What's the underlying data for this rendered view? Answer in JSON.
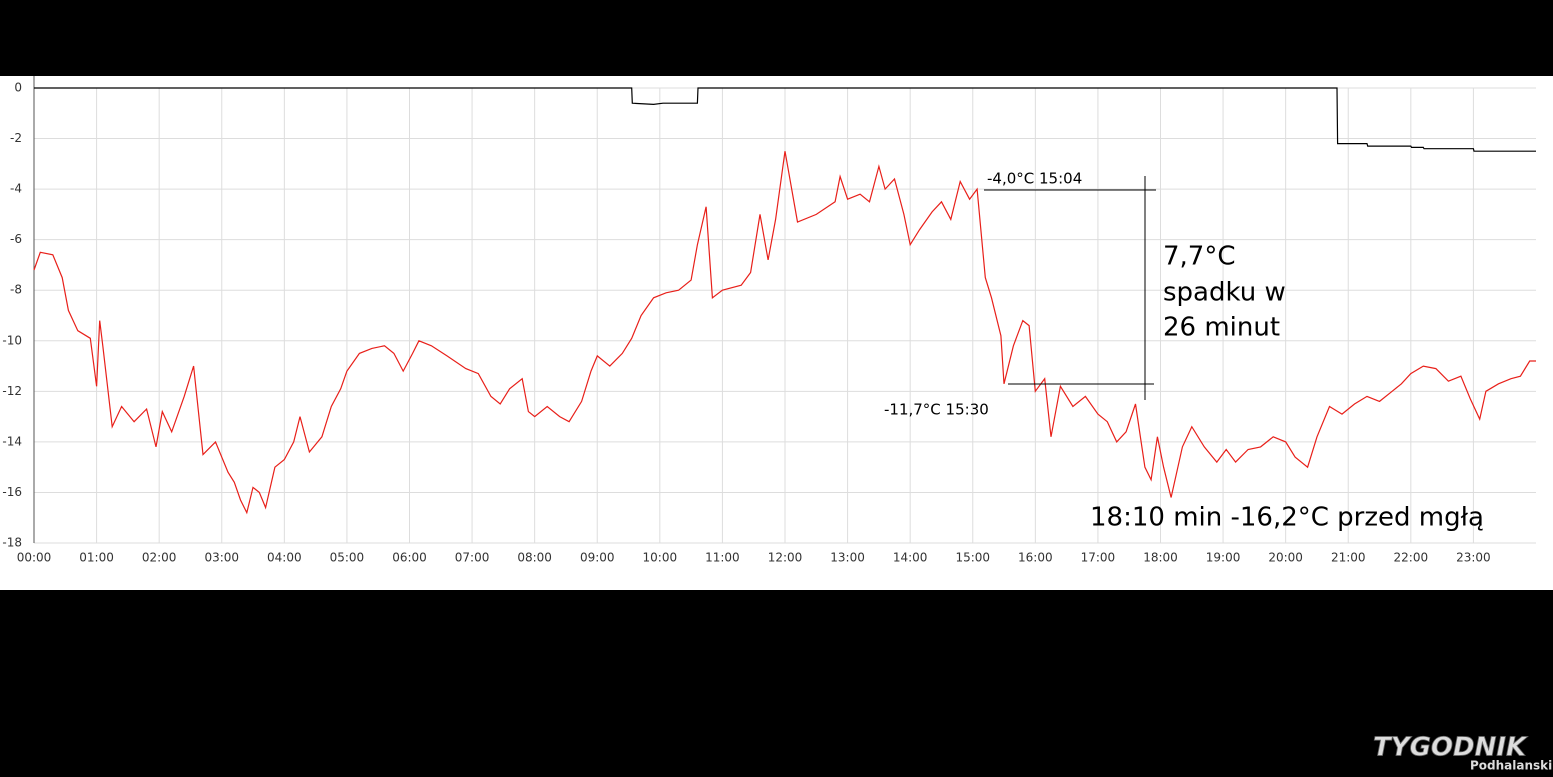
{
  "chart_data": {
    "type": "line",
    "annotations": [
      "-4,0°C 15:04",
      "-11,7°C 15:30",
      "7,7°C",
      "spadku w",
      "26 minut",
      "18:10 min -16,2°C przed mgłą"
    ],
    "watermark": [
      "TYGODNIK",
      "Podhalanski"
    ],
    "xlim": [
      0,
      24
    ],
    "ylim": [
      -18,
      0
    ],
    "yticks": [
      0,
      -2,
      -4,
      -6,
      -8,
      -10,
      -12,
      -14,
      -16,
      -18
    ],
    "xticks": [
      {
        "value": 0,
        "label": "00:00"
      },
      {
        "value": 1,
        "label": "01:00"
      },
      {
        "value": 2,
        "label": "02:00"
      },
      {
        "value": 3,
        "label": "03:00"
      },
      {
        "value": 4,
        "label": "04:00"
      },
      {
        "value": 5,
        "label": "05:00"
      },
      {
        "value": 6,
        "label": "06:00"
      },
      {
        "value": 7,
        "label": "07:00"
      },
      {
        "value": 8,
        "label": "08:00"
      },
      {
        "value": 9,
        "label": "09:00"
      },
      {
        "value": 10,
        "label": "10:00"
      },
      {
        "value": 11,
        "label": "11:00"
      },
      {
        "value": 12,
        "label": "12:00"
      },
      {
        "value": 13,
        "label": "13:00"
      },
      {
        "value": 14,
        "label": "14:00"
      },
      {
        "value": 15,
        "label": "15:00"
      },
      {
        "value": 16,
        "label": "16:00"
      },
      {
        "value": 17,
        "label": "17:00"
      },
      {
        "value": 18,
        "label": "18:00"
      },
      {
        "value": 19,
        "label": "19:00"
      },
      {
        "value": 20,
        "label": "20:00"
      },
      {
        "value": 21,
        "label": "21:00"
      },
      {
        "value": 22,
        "label": "22:00"
      },
      {
        "value": 23,
        "label": "23:00"
      }
    ],
    "grid": true,
    "series": [
      {
        "color": "#000000",
        "x": [
          0,
          9.55,
          9.56,
          9.9,
          10.05,
          10.6,
          10.61,
          20.82,
          20.83,
          21.3,
          21.31,
          22.0,
          22.01,
          22.2,
          22.21,
          23.0,
          23.01,
          24
        ],
        "values": [
          0,
          0,
          -0.6,
          -0.65,
          -0.6,
          -0.6,
          0,
          0,
          -2.2,
          -2.2,
          -2.3,
          -2.3,
          -2.35,
          -2.35,
          -2.4,
          -2.4,
          -2.5,
          -2.5
        ]
      },
      {
        "color": "#e8201a",
        "x": [
          0,
          0.1,
          0.3,
          0.45,
          0.55,
          0.7,
          0.9,
          1.0,
          1.05,
          1.1,
          1.25,
          1.4,
          1.6,
          1.8,
          1.95,
          2.05,
          2.2,
          2.4,
          2.55,
          2.7,
          2.9,
          3.1,
          3.2,
          3.3,
          3.4,
          3.5,
          3.6,
          3.7,
          3.85,
          4.0,
          4.15,
          4.25,
          4.4,
          4.6,
          4.75,
          4.9,
          5.0,
          5.2,
          5.4,
          5.6,
          5.75,
          5.9,
          6.05,
          6.15,
          6.35,
          6.6,
          6.9,
          7.1,
          7.3,
          7.45,
          7.6,
          7.8,
          7.9,
          8.0,
          8.2,
          8.4,
          8.55,
          8.75,
          8.9,
          9.0,
          9.2,
          9.4,
          9.55,
          9.7,
          9.9,
          10.1,
          10.3,
          10.5,
          10.6,
          10.74,
          10.84,
          11.0,
          11.3,
          11.45,
          11.6,
          11.73,
          11.85,
          12.0,
          12.2,
          12.5,
          12.8,
          12.88,
          13.0,
          13.2,
          13.35,
          13.5,
          13.6,
          13.75,
          13.9,
          14.0,
          14.15,
          14.35,
          14.5,
          14.65,
          14.8,
          14.95,
          15.07,
          15.2,
          15.3,
          15.45,
          15.5,
          15.65,
          15.8,
          15.9,
          16.0,
          16.15,
          16.25,
          16.4,
          16.6,
          16.8,
          17.0,
          17.15,
          17.3,
          17.45,
          17.6,
          17.75,
          17.85,
          17.95,
          18.05,
          18.17,
          18.35,
          18.5,
          18.7,
          18.9,
          19.05,
          19.2,
          19.4,
          19.6,
          19.8,
          20.0,
          20.15,
          20.35,
          20.5,
          20.7,
          20.9,
          21.1,
          21.3,
          21.5,
          21.7,
          21.85,
          22.0,
          22.2,
          22.4,
          22.6,
          22.8,
          22.95,
          23.1,
          23.2,
          23.4,
          23.6,
          23.75,
          23.9,
          24.0
        ],
        "values": [
          -7.2,
          -6.5,
          -6.6,
          -7.5,
          -8.8,
          -9.6,
          -9.9,
          -11.8,
          -9.2,
          -10.2,
          -13.4,
          -12.6,
          -13.2,
          -12.7,
          -14.2,
          -12.8,
          -13.6,
          -12.2,
          -11.0,
          -14.5,
          -14.0,
          -15.2,
          -15.6,
          -16.3,
          -16.8,
          -15.8,
          -16.0,
          -16.6,
          -15.0,
          -14.7,
          -14.0,
          -13.0,
          -14.4,
          -13.8,
          -12.6,
          -11.9,
          -11.2,
          -10.5,
          -10.3,
          -10.2,
          -10.5,
          -11.2,
          -10.5,
          -10.0,
          -10.2,
          -10.6,
          -11.1,
          -11.3,
          -12.2,
          -12.5,
          -11.9,
          -11.5,
          -12.8,
          -13.0,
          -12.6,
          -13.0,
          -13.2,
          -12.4,
          -11.2,
          -10.6,
          -11.0,
          -10.5,
          -9.9,
          -9.0,
          -8.3,
          -8.1,
          -8.0,
          -7.6,
          -6.2,
          -4.7,
          -8.3,
          -8.0,
          -7.8,
          -7.3,
          -5.0,
          -6.8,
          -5.2,
          -2.5,
          -5.3,
          -5.0,
          -4.5,
          -3.5,
          -4.4,
          -4.2,
          -4.5,
          -3.1,
          -4.0,
          -3.6,
          -5.0,
          -6.2,
          -5.6,
          -4.9,
          -4.5,
          -5.2,
          -3.7,
          -4.4,
          -4.0,
          -7.5,
          -8.3,
          -9.8,
          -11.7,
          -10.2,
          -9.2,
          -9.4,
          -12.0,
          -11.5,
          -13.8,
          -11.8,
          -12.6,
          -12.2,
          -12.9,
          -13.2,
          -14.0,
          -13.6,
          -12.5,
          -15.0,
          -15.5,
          -13.8,
          -15.0,
          -16.2,
          -14.2,
          -13.4,
          -14.2,
          -14.8,
          -14.3,
          -14.8,
          -14.3,
          -14.2,
          -13.8,
          -14.0,
          -14.6,
          -15.0,
          -13.8,
          -12.6,
          -12.9,
          -12.5,
          -12.2,
          -12.4,
          -12.0,
          -11.7,
          -11.3,
          -11.0,
          -11.1,
          -11.6,
          -11.4,
          -12.3,
          -13.1,
          -12.0,
          -11.7,
          -11.5,
          -11.4,
          -10.8,
          -10.8
        ]
      }
    ]
  }
}
